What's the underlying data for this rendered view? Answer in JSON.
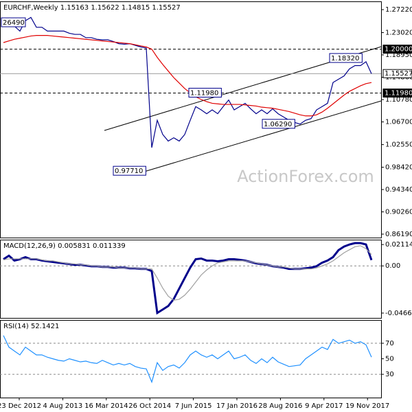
{
  "chart_data": [
    {
      "type": "line",
      "title": "EURCHF,Weekly  1.15163 1.15622 1.14815 1.15527",
      "watermark": "ActionForex.com",
      "ylim": [
        0.8556,
        1.2873
      ],
      "yticks": [
        {
          "value": 1.2722,
          "label": "1.27220"
        },
        {
          "value": 1.2302,
          "label": "1.23020"
        },
        {
          "value": 1.1895,
          "label": "1.18950"
        },
        {
          "value": 1.1486,
          "label": "1.14860"
        },
        {
          "value": 1.1078,
          "label": "1.10780"
        },
        {
          "value": 1.067,
          "label": "1.06700"
        },
        {
          "value": 1.0255,
          "label": "1.02550"
        },
        {
          "value": 0.9842,
          "label": "0.98420"
        },
        {
          "value": 0.9434,
          "label": "0.94340"
        },
        {
          "value": 0.9026,
          "label": "0.90260"
        },
        {
          "value": 0.8619,
          "label": "0.86190"
        }
      ],
      "hlines": [
        {
          "value": 1.2,
          "label": "1.20000",
          "dashed": true,
          "highlight": true
        },
        {
          "value": 1.15527,
          "label": "1.15527",
          "dashed": false,
          "highlight": false
        },
        {
          "value": 1.1198,
          "label": "1.11980",
          "dashed": true,
          "highlight": true
        }
      ],
      "annotations": [
        {
          "label": "26490"
        },
        {
          "label": "1.18320",
          "value": 1.1832
        },
        {
          "label": "1.11980",
          "value": 1.1198
        },
        {
          "label": "1.06290",
          "value": 1.0629
        },
        {
          "label": "0.97710",
          "value": 0.9771
        }
      ],
      "series": [
        {
          "color": "#00008b",
          "values": [
            1.252,
            1.246,
            1.242,
            1.233,
            1.252,
            1.258,
            1.24,
            1.24,
            1.233,
            1.233,
            1.233,
            1.233,
            1.229,
            1.227,
            1.227,
            1.221,
            1.221,
            1.218,
            1.217,
            1.217,
            1.214,
            1.21,
            1.209,
            1.21,
            1.207,
            1.204,
            1.202,
            1.02,
            1.07,
            1.044,
            1.032,
            1.038,
            1.032,
            1.044,
            1.07,
            1.095,
            1.089,
            1.082,
            1.089,
            1.082,
            1.095,
            1.107,
            1.089,
            1.095,
            1.101,
            1.091,
            1.082,
            1.089,
            1.082,
            1.091,
            1.082,
            1.076,
            1.07,
            1.066,
            1.063,
            1.07,
            1.073,
            1.089,
            1.095,
            1.101,
            1.139,
            1.145,
            1.151,
            1.164,
            1.17,
            1.17,
            1.177,
            1.155
          ]
        },
        {
          "color": "#e00000",
          "values": [
            1.212,
            1.215,
            1.218,
            1.22,
            1.222,
            1.224,
            1.225,
            1.225,
            1.225,
            1.224,
            1.223,
            1.222,
            1.221,
            1.22,
            1.219,
            1.218,
            1.217,
            1.216,
            1.215,
            1.214,
            1.213,
            1.212,
            1.211,
            1.21,
            1.208,
            1.206,
            1.204,
            1.2,
            1.185,
            1.172,
            1.16,
            1.148,
            1.138,
            1.128,
            1.12,
            1.113,
            1.108,
            1.104,
            1.101,
            1.1,
            1.099,
            1.099,
            1.099,
            1.099,
            1.098,
            1.097,
            1.096,
            1.094,
            1.093,
            1.092,
            1.09,
            1.088,
            1.086,
            1.083,
            1.08,
            1.078,
            1.078,
            1.08,
            1.085,
            1.092,
            1.1,
            1.108,
            1.116,
            1.123,
            1.128,
            1.133,
            1.137,
            1.139
          ]
        }
      ]
    },
    {
      "type": "line",
      "title": "MACD(12,26,9) 0.005831 0.011339",
      "ylim": [
        -0.0515,
        0.026
      ],
      "yticks": [
        0.021146,
        {
          "value": 0,
          "label": "0.00"
        },
        -0.046695
      ],
      "levels": [
        0
      ],
      "series": [
        {
          "color": "#00008b",
          "values": [
            0.0066,
            0.0101,
            0.0053,
            0.0066,
            0.0087,
            0.0066,
            0.0066,
            0.0053,
            0.0046,
            0.0039,
            0.0032,
            0.0025,
            0.0018,
            0.0011,
            0.0011,
            0.0004,
            -0.0003,
            -0.0003,
            -0.001,
            -0.001,
            -0.0017,
            -0.0017,
            -0.0017,
            -0.0024,
            -0.0024,
            -0.003,
            -0.003,
            -0.0051,
            -0.0466,
            -0.0432,
            -0.0397,
            -0.0328,
            -0.0224,
            -0.012,
            -0.0017,
            0.0066,
            0.0073,
            0.0053,
            0.0053,
            0.0046,
            0.0053,
            0.0066,
            0.0066,
            0.006,
            0.0053,
            0.0039,
            0.0025,
            0.0018,
            0.0011,
            -0.0003,
            -0.001,
            -0.0017,
            -0.003,
            -0.003,
            -0.003,
            -0.0024,
            -0.0017,
            -0.0003,
            0.0032,
            0.0053,
            0.0087,
            0.0156,
            0.0191,
            0.0212,
            0.0226,
            0.0226,
            0.0212,
            0.0058
          ]
        },
        {
          "color": "#a0a0a0",
          "values": [
            0.006,
            0.007,
            0.007,
            0.007,
            0.007,
            0.007,
            0.007,
            0.006,
            0.005,
            0.005,
            0.004,
            0.003,
            0.002,
            0.002,
            0.001,
            0.001,
            0.0,
            0.0,
            -0.001,
            -0.001,
            -0.001,
            -0.002,
            -0.002,
            -0.002,
            -0.002,
            -0.003,
            -0.003,
            -0.003,
            -0.012,
            -0.022,
            -0.03,
            -0.034,
            -0.033,
            -0.029,
            -0.023,
            -0.016,
            -0.009,
            -0.004,
            0.0,
            0.003,
            0.004,
            0.005,
            0.005,
            0.005,
            0.005,
            0.004,
            0.003,
            0.002,
            0.001,
            0.0,
            -0.001,
            -0.001,
            -0.002,
            -0.003,
            -0.003,
            -0.003,
            -0.003,
            -0.002,
            0.0,
            0.002,
            0.005,
            0.009,
            0.013,
            0.016,
            0.019,
            0.02,
            0.017,
            0.0113
          ]
        }
      ]
    },
    {
      "type": "line",
      "title": "RSI(14) 52.1421",
      "ylim": [
        0,
        100
      ],
      "yticks": [
        70,
        50,
        30
      ],
      "levels": [
        30,
        70
      ],
      "date_labels": [
        "23 Dec 2012",
        "4 Aug 2013",
        "16 Mar 2014",
        "26 Oct 2014",
        "7 Jun 2015",
        "17 Jan 2016",
        "28 Aug 2016",
        "9 Apr 2017",
        "19 Nov 2017"
      ],
      "series": [
        {
          "color": "#1e90ff",
          "values": [
            80,
            65,
            60,
            55,
            65,
            60,
            55,
            55,
            52,
            50,
            48,
            47,
            50,
            48,
            46,
            47,
            45,
            44,
            48,
            45,
            42,
            44,
            42,
            44,
            40,
            38,
            37,
            20,
            45,
            35,
            40,
            42,
            38,
            45,
            55,
            60,
            55,
            52,
            55,
            50,
            55,
            60,
            50,
            52,
            55,
            48,
            44,
            50,
            45,
            52,
            46,
            43,
            40,
            41,
            42,
            50,
            55,
            60,
            65,
            62,
            75,
            70,
            72,
            74,
            70,
            72,
            68,
            52.1421
          ]
        }
      ]
    }
  ]
}
